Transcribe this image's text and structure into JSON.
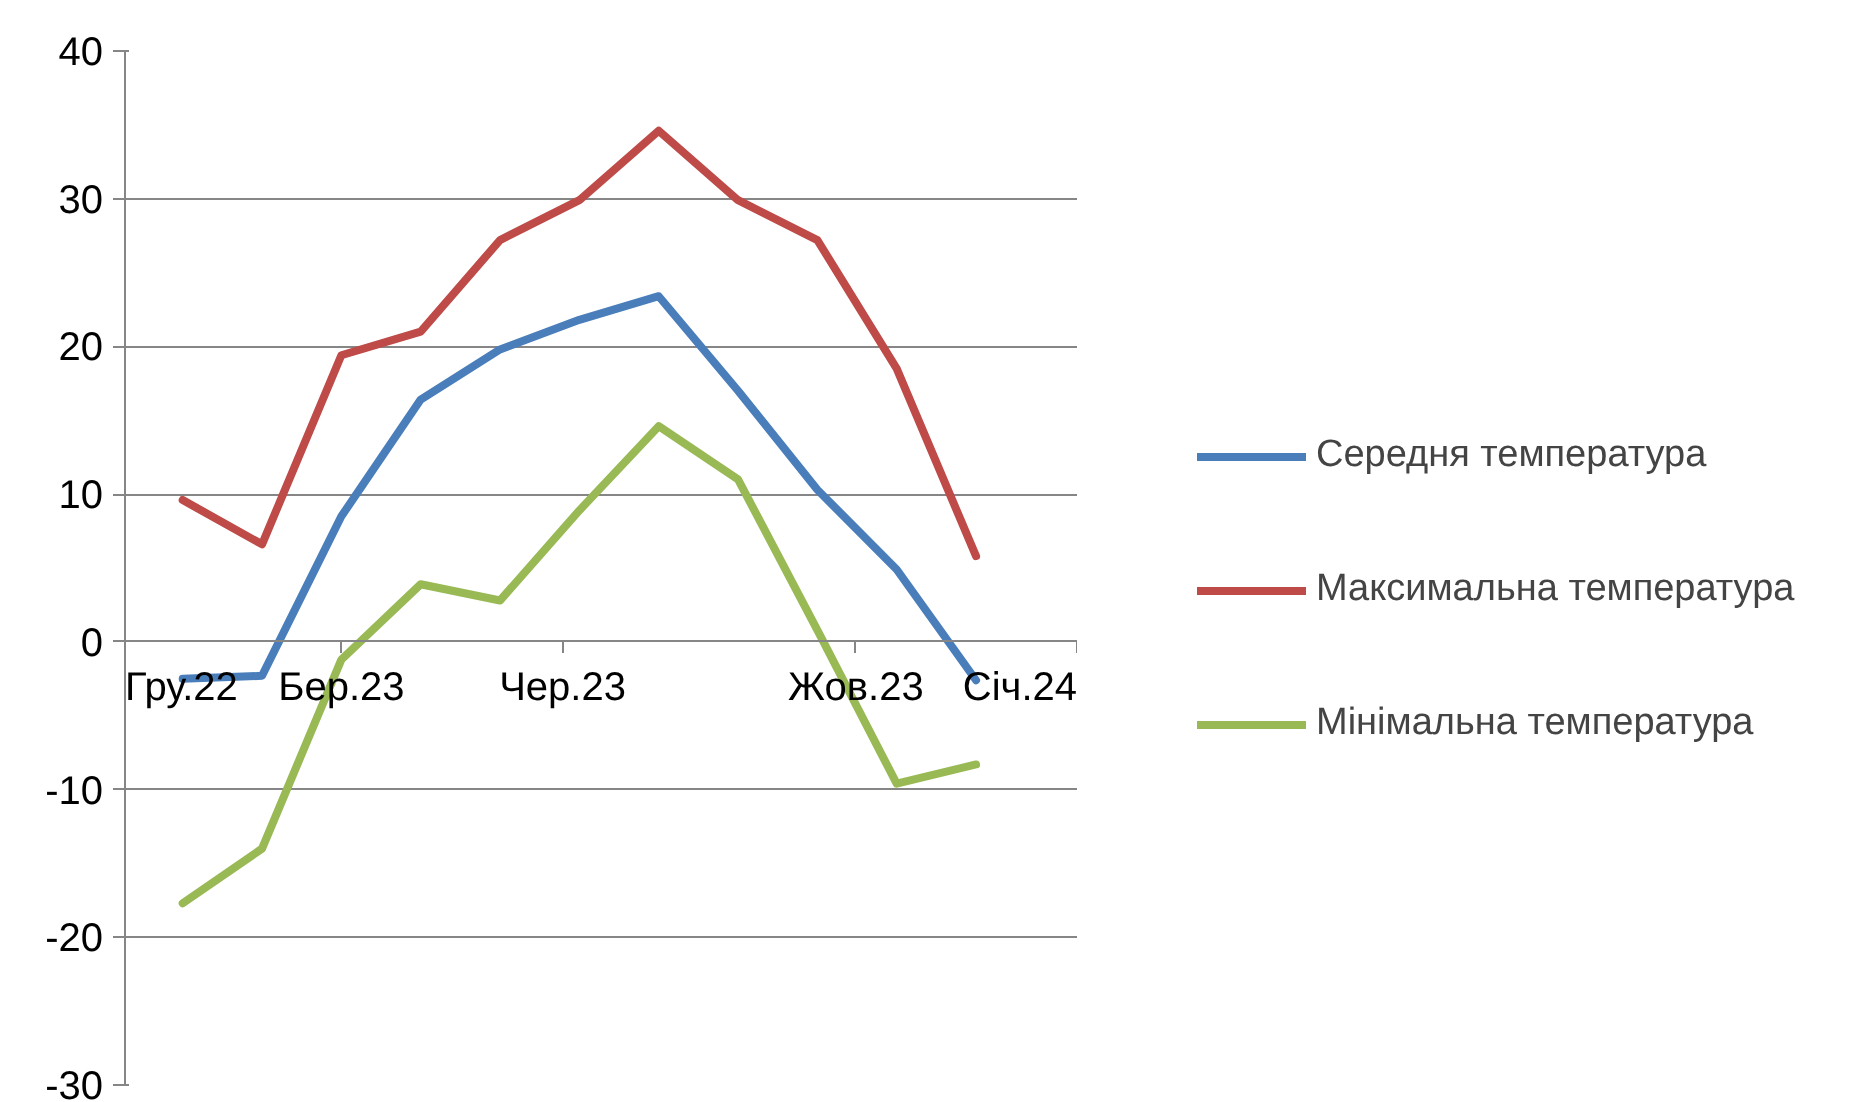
{
  "chart_data": {
    "type": "line",
    "x": [
      "2022-12-25",
      "2023-01-27",
      "2023-03-01",
      "2023-04-03",
      "2023-05-06",
      "2023-06-08",
      "2023-07-11",
      "2023-08-13",
      "2023-09-15",
      "2023-10-18",
      "2023-11-20"
    ],
    "series": [
      {
        "name": "Середня температура",
        "color": "#4a7ebb",
        "values": [
          -2.5,
          -2.3,
          8.5,
          16.4,
          19.8,
          21.8,
          23.4,
          17,
          10.3,
          4.9,
          -2.6
        ]
      },
      {
        "name": "Максимальна температура",
        "color": "#be4b48",
        "values": [
          9.6,
          6.6,
          19.4,
          21,
          27.2,
          29.9,
          34.6,
          29.9,
          27.2,
          18.5,
          5.8
        ]
      },
      {
        "name": "Мінімальна температура",
        "color": "#98b954",
        "values": [
          -17.7,
          -14,
          -1.2,
          3.9,
          2.8,
          8.9,
          14.6,
          11,
          0.8,
          -9.6,
          -8.3
        ]
      }
    ],
    "xlim": [
      "2022-12-01",
      "2024-01-01"
    ],
    "xticks": [
      {
        "value": "2022-12-01",
        "label": "Гру.22"
      },
      {
        "value": "2023-03-01",
        "label": "Бер.23"
      },
      {
        "value": "2023-06-01",
        "label": "Чер.23"
      },
      {
        "value": "2023-10-01",
        "label": "Жов.23"
      },
      {
        "value": "2024-01-01",
        "label": "Січ.24"
      }
    ],
    "ylim": [
      -30,
      40
    ],
    "yticks": [
      -30,
      -20,
      -10,
      0,
      10,
      20,
      30,
      40
    ],
    "grid": "y",
    "legend": "right",
    "marker": "none",
    "line_style": "solid"
  }
}
